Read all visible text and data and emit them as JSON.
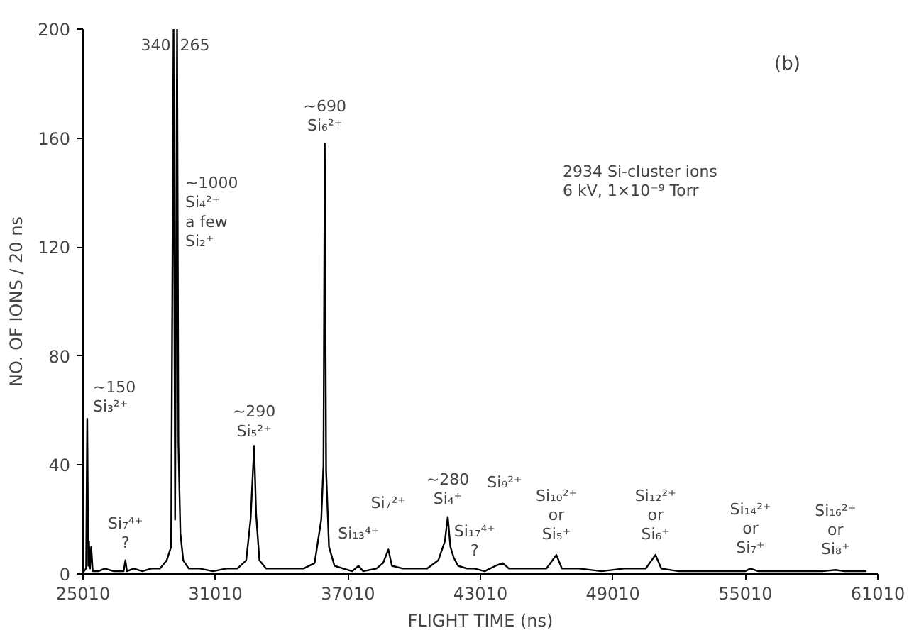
{
  "chart_data": {
    "type": "line",
    "color": "#000000",
    "xlabel": "FLIGHT TIME (ns)",
    "ylabel": "NO. OF IONS / 20 ns",
    "xlim": [
      25010,
      61010
    ],
    "ylim": [
      0,
      200
    ],
    "xticks": [
      25010,
      31010,
      37010,
      43010,
      49010,
      55010,
      61010
    ],
    "yticks": [
      0,
      40,
      80,
      120,
      160,
      200
    ],
    "x": [
      25050,
      25150,
      25200,
      25250,
      25280,
      25330,
      25380,
      25450,
      25700,
      26000,
      26400,
      26850,
      26930,
      27000,
      27300,
      27700,
      28100,
      28500,
      28800,
      29000,
      29110,
      29180,
      29270,
      29330,
      29420,
      29550,
      29800,
      30300,
      30900,
      31500,
      32000,
      32400,
      32600,
      32760,
      32850,
      33000,
      33300,
      33800,
      34500,
      35000,
      35500,
      35800,
      35900,
      35960,
      36020,
      36150,
      36400,
      36800,
      37200,
      37490,
      37700,
      38300,
      38600,
      38840,
      39000,
      39500,
      40000,
      40600,
      41100,
      41400,
      41530,
      41650,
      41800,
      42000,
      42400,
      42750,
      43200,
      43700,
      44020,
      44300,
      45000,
      46000,
      46450,
      46700,
      47500,
      48500,
      49500,
      50500,
      50940,
      51200,
      52000,
      53000,
      54000,
      55000,
      55240,
      55600,
      56500,
      57500,
      58500,
      59090,
      59500,
      60500
    ],
    "values": [
      1,
      2,
      57,
      3,
      12,
      2,
      10,
      1,
      1,
      2,
      1,
      1,
      5,
      1,
      2,
      1,
      2,
      2,
      5,
      10,
      200,
      20,
      200,
      48,
      15,
      5,
      2,
      2,
      1,
      2,
      2,
      5,
      20,
      47,
      22,
      5,
      2,
      2,
      2,
      2,
      4,
      20,
      40,
      158,
      38,
      10,
      3,
      2,
      1,
      3,
      1,
      2,
      4,
      9,
      3,
      2,
      2,
      2,
      5,
      12,
      21,
      10,
      6,
      3,
      2,
      2,
      1,
      3,
      4,
      2,
      2,
      2,
      7,
      2,
      2,
      1,
      2,
      2,
      7,
      2,
      1,
      1,
      1,
      1,
      2,
      1,
      1,
      1,
      1,
      1.5,
      1,
      1
    ],
    "annotations": [
      {
        "text": "~150\nSi₃²⁺",
        "x": 25200,
        "y": 57
      },
      {
        "text": "Si₇⁴⁺\n?",
        "x": 26930,
        "y": 5
      },
      {
        "text": "340",
        "x": 29110,
        "y": 200
      },
      {
        "text": "265",
        "x": 29270,
        "y": 200
      },
      "~1000\nSi₄²⁺\na few\nSi₂⁺",
      {
        "text": "~290\nSi₅²⁺",
        "x": 32760,
        "y": 47
      },
      {
        "text": "~690\nSi₆²⁺",
        "x": 35960,
        "y": 158
      },
      {
        "text": "Si₁₃⁴⁺",
        "x": 37490,
        "y": 3
      },
      {
        "text": "Si₇²⁺",
        "x": 38840,
        "y": 9
      },
      {
        "text": "~280\nSi₄⁺",
        "x": 41530,
        "y": 21
      },
      {
        "text": "Si₁₇⁴⁺\n?",
        "x": 42750,
        "y": 2
      },
      "Si₉²⁺",
      {
        "text": "Si₁₀²⁺\nor\nSi₅⁺",
        "x": 46450,
        "y": 7
      },
      {
        "text": "Si₁₂²⁺\nor\nSi₆⁺",
        "x": 50940,
        "y": 7
      },
      {
        "text": "Si₁₄²⁺\nor\nSi₇⁺",
        "x": 55240,
        "y": 2
      },
      {
        "text": "Si₁₆²⁺\nor\nSi₈⁺",
        "x": 59090,
        "y": 1.5
      },
      "(b)",
      "2934 Si-cluster ions\n6 kV, 1×10⁻⁹ Torr"
    ]
  }
}
